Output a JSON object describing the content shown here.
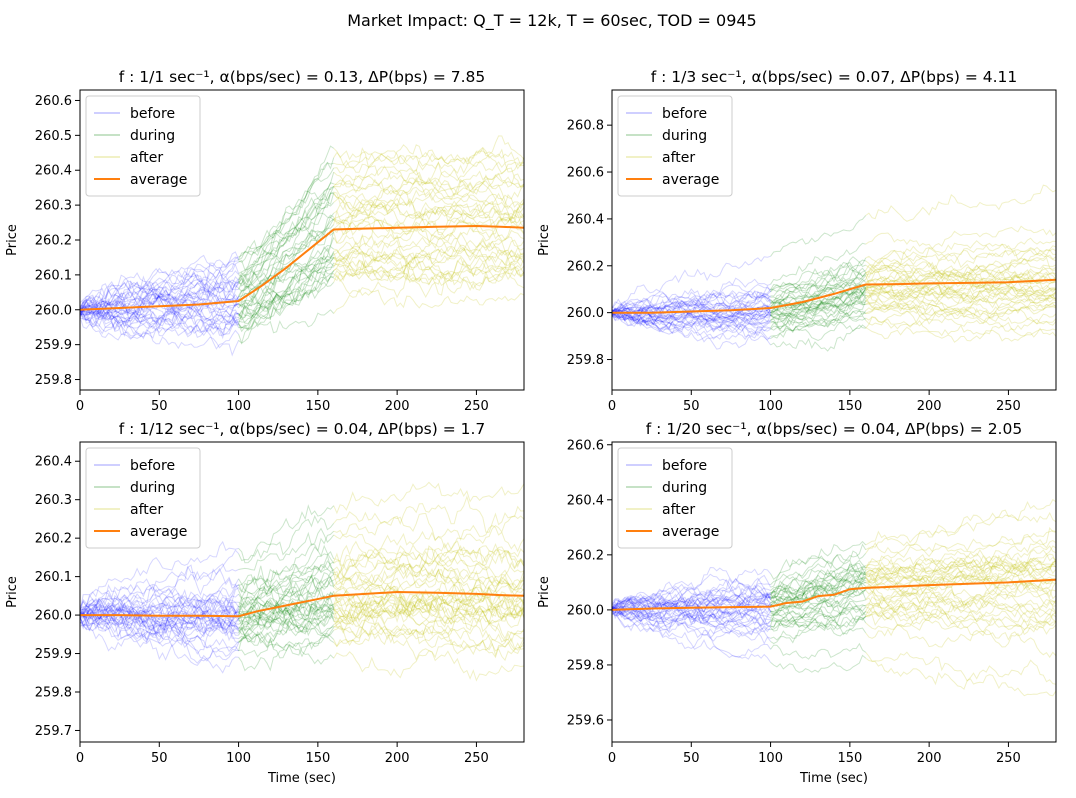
{
  "figure_title": "Market Impact: Q_T = 12k, T = 60sec, TOD = 0945",
  "chart_data": [
    {
      "type": "line",
      "title": "f : 1/1 sec⁻¹, α(bps/sec) = 0.13, ΔP(bps) = 7.85",
      "xlabel": "",
      "ylabel": "Price",
      "xlim": [
        0,
        280
      ],
      "ylim": [
        259.77,
        260.63
      ],
      "x_ticks": [
        0,
        50,
        100,
        150,
        200,
        250
      ],
      "y_ticks": [
        259.8,
        259.9,
        260.0,
        260.1,
        260.2,
        260.3,
        260.4,
        260.5,
        260.6
      ],
      "y_tick_decimals": 1,
      "legend": {
        "placement": "upper-left",
        "entries": [
          "before",
          "during",
          "after",
          "average"
        ]
      },
      "phases": {
        "before": [
          0,
          100
        ],
        "during": [
          100,
          160
        ],
        "after": [
          160,
          280
        ]
      },
      "colors": {
        "before": "#0000ff",
        "during": "#008000",
        "after": "#bfbf00",
        "average": "#ff7f0e"
      },
      "sample_path_spread": {
        "before_end_std": 0.07,
        "during_end_std": 0.12,
        "after_end_std": 0.13
      },
      "series": [
        {
          "name": "average",
          "x": [
            0,
            25,
            50,
            75,
            100,
            115,
            130,
            145,
            160,
            175,
            200,
            225,
            250,
            265,
            280
          ],
          "values": [
            260.0,
            260.005,
            260.01,
            260.015,
            260.025,
            260.07,
            260.12,
            260.175,
            260.23,
            260.232,
            260.235,
            260.238,
            260.24,
            260.238,
            260.235
          ]
        }
      ]
    },
    {
      "type": "line",
      "title": "f : 1/3 sec⁻¹, α(bps/sec) = 0.07, ΔP(bps) = 4.11",
      "xlabel": "",
      "ylabel": "Price",
      "xlim": [
        0,
        280
      ],
      "ylim": [
        259.67,
        260.95
      ],
      "x_ticks": [
        0,
        50,
        100,
        150,
        200,
        250
      ],
      "y_ticks": [
        259.8,
        260.0,
        260.2,
        260.4,
        260.6,
        260.8
      ],
      "y_tick_decimals": 1,
      "legend": {
        "placement": "upper-left",
        "entries": [
          "before",
          "during",
          "after",
          "average"
        ]
      },
      "phases": {
        "before": [
          0,
          100
        ],
        "during": [
          100,
          160
        ],
        "after": [
          160,
          280
        ]
      },
      "colors": {
        "before": "#0000ff",
        "during": "#008000",
        "after": "#bfbf00",
        "average": "#ff7f0e"
      },
      "sample_path_spread": {
        "before_end_std": 0.08,
        "during_end_std": 0.11,
        "after_end_std": 0.14
      },
      "series": [
        {
          "name": "average",
          "x": [
            0,
            25,
            50,
            75,
            100,
            120,
            140,
            160,
            180,
            200,
            225,
            250,
            265,
            280
          ],
          "values": [
            260.0,
            260.0,
            260.005,
            260.01,
            260.02,
            260.045,
            260.08,
            260.12,
            260.122,
            260.125,
            260.127,
            260.13,
            260.135,
            260.14
          ]
        }
      ]
    },
    {
      "type": "line",
      "title": "f : 1/12 sec⁻¹, α(bps/sec) = 0.04, ΔP(bps) = 1.7",
      "xlabel": "Time (sec)",
      "ylabel": "Price",
      "xlim": [
        0,
        280
      ],
      "ylim": [
        259.67,
        260.45
      ],
      "x_ticks": [
        0,
        50,
        100,
        150,
        200,
        250
      ],
      "y_ticks": [
        259.7,
        259.8,
        259.9,
        260.0,
        260.1,
        260.2,
        260.3,
        260.4
      ],
      "y_tick_decimals": 1,
      "legend": {
        "placement": "upper-left",
        "entries": [
          "before",
          "during",
          "after",
          "average"
        ]
      },
      "phases": {
        "before": [
          0,
          100
        ],
        "during": [
          100,
          160
        ],
        "after": [
          160,
          280
        ]
      },
      "colors": {
        "before": "#0000ff",
        "during": "#008000",
        "after": "#bfbf00",
        "average": "#ff7f0e"
      },
      "sample_path_spread": {
        "before_end_std": 0.07,
        "during_end_std": 0.1,
        "after_end_std": 0.12
      },
      "series": [
        {
          "name": "average",
          "x": [
            0,
            25,
            50,
            75,
            100,
            112,
            124,
            136,
            148,
            160,
            180,
            200,
            225,
            250,
            265,
            280
          ],
          "values": [
            260.0,
            260.0,
            259.998,
            259.998,
            259.997,
            260.01,
            260.02,
            260.03,
            260.04,
            260.05,
            260.055,
            260.06,
            260.058,
            260.055,
            260.052,
            260.05
          ]
        }
      ]
    },
    {
      "type": "line",
      "title": "f : 1/20 sec⁻¹, α(bps/sec) = 0.04, ΔP(bps) = 2.05",
      "xlabel": "Time (sec)",
      "ylabel": "Price",
      "xlim": [
        0,
        280
      ],
      "ylim": [
        259.52,
        260.61
      ],
      "x_ticks": [
        0,
        50,
        100,
        150,
        200,
        250
      ],
      "y_ticks": [
        259.6,
        259.8,
        260.0,
        260.2,
        260.4,
        260.6
      ],
      "y_tick_decimals": 1,
      "legend": {
        "placement": "upper-left",
        "entries": [
          "before",
          "during",
          "after",
          "average"
        ]
      },
      "phases": {
        "before": [
          0,
          100
        ],
        "during": [
          100,
          160
        ],
        "after": [
          160,
          280
        ]
      },
      "colors": {
        "before": "#0000ff",
        "during": "#008000",
        "after": "#bfbf00",
        "average": "#ff7f0e"
      },
      "sample_path_spread": {
        "before_end_std": 0.07,
        "during_end_std": 0.1,
        "after_end_std": 0.15
      },
      "series": [
        {
          "name": "average",
          "x": [
            0,
            25,
            50,
            75,
            100,
            110,
            120,
            130,
            140,
            150,
            160,
            180,
            200,
            225,
            250,
            265,
            280
          ],
          "values": [
            260.0,
            260.005,
            260.008,
            260.01,
            260.012,
            260.025,
            260.03,
            260.05,
            260.055,
            260.075,
            260.08,
            260.085,
            260.09,
            260.095,
            260.1,
            260.105,
            260.11
          ]
        }
      ]
    }
  ]
}
